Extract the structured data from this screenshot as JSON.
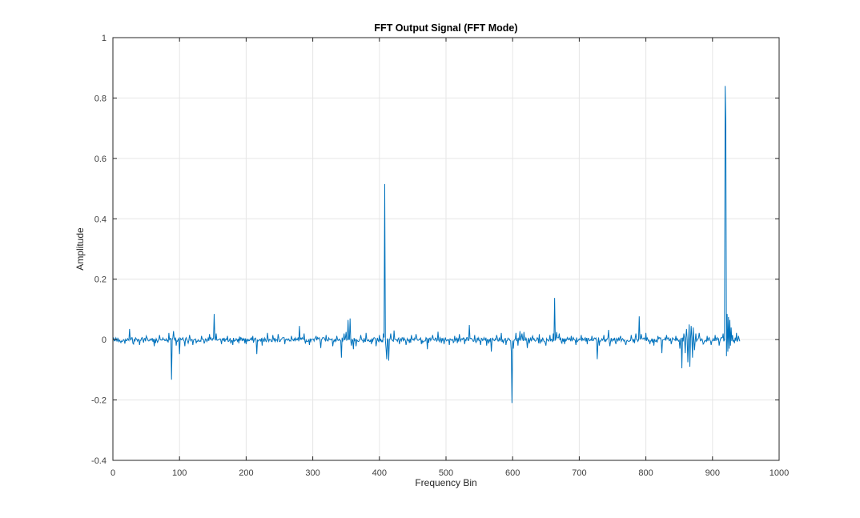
{
  "figure": {
    "title": "FFT Output Signal (FFT Mode)"
  },
  "chart_data": {
    "type": "line",
    "title": "FFT Output Signal (FFT Mode)",
    "xlabel": "Frequency Bin",
    "ylabel": "Amplitude",
    "xlim": [
      0,
      1000
    ],
    "ylim": [
      -0.4,
      1
    ],
    "xticks": [
      0,
      100,
      200,
      300,
      400,
      500,
      600,
      700,
      800,
      900,
      1000
    ],
    "xtick_labels": [
      "0",
      "100",
      "200",
      "300",
      "400",
      "500",
      "600",
      "700",
      "800",
      "900",
      "1000"
    ],
    "yticks": [
      -0.4,
      -0.2,
      0,
      0.2,
      0.4,
      0.6,
      0.8,
      1
    ],
    "ytick_labels": [
      "-0.4",
      "-0.2",
      "0",
      "0.2",
      "0.4",
      "0.6",
      "0.8",
      "1"
    ],
    "grid": true,
    "legend_position": "none",
    "line_color": "#0072BD",
    "axis_color": "#262626",
    "grid_color": "#e6e6e6",
    "tick_label_color": "#3d3d3d",
    "n_points": 942,
    "noise_amplitude": 0.007,
    "noise_seed": 42,
    "spikes": [
      [
        25,
        0.035
      ],
      [
        31,
        -0.015
      ],
      [
        40,
        -0.018
      ],
      [
        50,
        0.012
      ],
      [
        62,
        -0.022
      ],
      [
        70,
        0.015
      ],
      [
        84,
        0.022
      ],
      [
        88,
        -0.133
      ],
      [
        91,
        0.028
      ],
      [
        95,
        -0.02
      ],
      [
        100,
        -0.048
      ],
      [
        108,
        -0.022
      ],
      [
        115,
        0.015
      ],
      [
        120,
        -0.018
      ],
      [
        133,
        0.012
      ],
      [
        145,
        0.018
      ],
      [
        152,
        0.085
      ],
      [
        155,
        0.02
      ],
      [
        163,
        -0.015
      ],
      [
        172,
        0.012
      ],
      [
        180,
        -0.018
      ],
      [
        190,
        0.01
      ],
      [
        200,
        -0.015
      ],
      [
        210,
        0.012
      ],
      [
        216,
        -0.048
      ],
      [
        224,
        -0.02
      ],
      [
        232,
        0.022
      ],
      [
        240,
        0.015
      ],
      [
        248,
        0.018
      ],
      [
        258,
        -0.015
      ],
      [
        268,
        0.012
      ],
      [
        280,
        0.045
      ],
      [
        287,
        0.02
      ],
      [
        295,
        -0.018
      ],
      [
        305,
        0.012
      ],
      [
        312,
        -0.028
      ],
      [
        320,
        0.015
      ],
      [
        330,
        -0.022
      ],
      [
        336,
        0.012
      ],
      [
        343,
        -0.06
      ],
      [
        347,
        0.02
      ],
      [
        350,
        0.025
      ],
      [
        353,
        0.065
      ],
      [
        356,
        0.07
      ],
      [
        358,
        -0.02
      ],
      [
        361,
        -0.032
      ],
      [
        365,
        -0.022
      ],
      [
        372,
        0.015
      ],
      [
        380,
        0.022
      ],
      [
        388,
        -0.015
      ],
      [
        395,
        -0.022
      ],
      [
        400,
        0.015
      ],
      [
        406,
        0.02
      ],
      [
        408,
        0.515
      ],
      [
        410,
        -0.03
      ],
      [
        411,
        -0.065
      ],
      [
        414,
        -0.07
      ],
      [
        417,
        0.02
      ],
      [
        422,
        0.03
      ],
      [
        430,
        -0.015
      ],
      [
        440,
        -0.018
      ],
      [
        448,
        0.015
      ],
      [
        455,
        0.018
      ],
      [
        463,
        -0.015
      ],
      [
        472,
        -0.032
      ],
      [
        480,
        0.015
      ],
      [
        488,
        0.026
      ],
      [
        497,
        -0.015
      ],
      [
        505,
        -0.018
      ],
      [
        513,
        0.012
      ],
      [
        520,
        0.018
      ],
      [
        528,
        -0.015
      ],
      [
        535,
        0.048
      ],
      [
        543,
        0.015
      ],
      [
        552,
        -0.018
      ],
      [
        561,
        -0.02
      ],
      [
        568,
        -0.04
      ],
      [
        576,
        0.015
      ],
      [
        583,
        0.022
      ],
      [
        590,
        -0.018
      ],
      [
        598,
        -0.04
      ],
      [
        599,
        -0.21
      ],
      [
        601,
        -0.03
      ],
      [
        605,
        0.022
      ],
      [
        608,
        -0.02
      ],
      [
        611,
        0.028
      ],
      [
        614,
        0.02
      ],
      [
        617,
        0.025
      ],
      [
        622,
        -0.028
      ],
      [
        630,
        0.012
      ],
      [
        640,
        0.018
      ],
      [
        650,
        -0.02
      ],
      [
        656,
        0.015
      ],
      [
        661,
        0.02
      ],
      [
        663,
        0.138
      ],
      [
        666,
        0.025
      ],
      [
        670,
        0.02
      ],
      [
        678,
        -0.015
      ],
      [
        688,
        0.012
      ],
      [
        695,
        -0.018
      ],
      [
        703,
        0.015
      ],
      [
        712,
        -0.015
      ],
      [
        719,
        0.012
      ],
      [
        727,
        -0.065
      ],
      [
        730,
        -0.02
      ],
      [
        737,
        0.015
      ],
      [
        744,
        0.032
      ],
      [
        746,
        -0.022
      ],
      [
        755,
        -0.015
      ],
      [
        762,
        0.012
      ],
      [
        770,
        -0.018
      ],
      [
        778,
        0.015
      ],
      [
        785,
        0.02
      ],
      [
        790,
        0.077
      ],
      [
        793,
        0.018
      ],
      [
        800,
        0.022
      ],
      [
        806,
        -0.015
      ],
      [
        812,
        -0.02
      ],
      [
        818,
        0.012
      ],
      [
        824,
        -0.045
      ],
      [
        831,
        0.015
      ],
      [
        838,
        -0.015
      ],
      [
        845,
        0.012
      ],
      [
        851,
        -0.03
      ],
      [
        854,
        -0.095
      ],
      [
        857,
        0.02
      ],
      [
        859,
        -0.045
      ],
      [
        861,
        0.035
      ],
      [
        863,
        -0.075
      ],
      [
        865,
        0.05
      ],
      [
        866,
        -0.09
      ],
      [
        868,
        0.045
      ],
      [
        870,
        -0.06
      ],
      [
        871,
        0.04
      ],
      [
        873,
        -0.035
      ],
      [
        875,
        0.02
      ],
      [
        880,
        0.022
      ],
      [
        886,
        -0.015
      ],
      [
        892,
        0.012
      ],
      [
        898,
        -0.018
      ],
      [
        904,
        0.015
      ],
      [
        910,
        -0.02
      ],
      [
        916,
        0.02
      ],
      [
        919,
        0.84
      ],
      [
        920,
        0.71
      ],
      [
        921,
        -0.055
      ],
      [
        922,
        0.085
      ],
      [
        923,
        -0.04
      ],
      [
        924,
        0.075
      ],
      [
        925,
        -0.03
      ],
      [
        926,
        0.065
      ],
      [
        927,
        -0.02
      ],
      [
        928,
        0.04
      ],
      [
        930,
        0.015
      ],
      [
        933,
        -0.012
      ],
      [
        936,
        0.022
      ],
      [
        939,
        0.012
      ]
    ]
  }
}
